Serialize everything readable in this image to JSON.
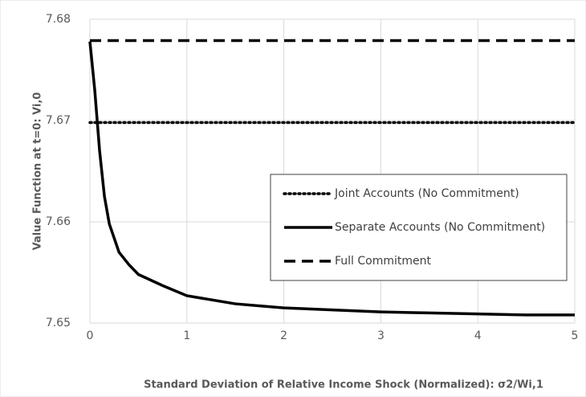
{
  "chart_data": {
    "type": "line",
    "y_label": "Value Function at t=0: Vi,0",
    "x_label": "Standard Deviation of Relative Income Shock (Normalized): σ2/Wi,1",
    "x": [
      0,
      0.05,
      0.1,
      0.15,
      0.2,
      0.3,
      0.4,
      0.5,
      0.75,
      1,
      1.5,
      2,
      2.5,
      3,
      3.5,
      4,
      4.5,
      5
    ],
    "series": [
      {
        "name": "Joint Accounts (No Commitment)",
        "color": "#000000",
        "style": "dotted",
        "values": [
          7.6698,
          7.6698,
          7.6698,
          7.6698,
          7.6698,
          7.6698,
          7.6698,
          7.6698,
          7.6698,
          7.6698,
          7.6698,
          7.6698,
          7.6698,
          7.6698,
          7.6698,
          7.6698,
          7.6698,
          7.6698
        ]
      },
      {
        "name": "Separate Accounts (No Commitment)",
        "color": "#000000",
        "style": "solid",
        "values": [
          7.6778,
          7.673,
          7.667,
          7.6625,
          7.6598,
          7.657,
          7.6558,
          7.6548,
          7.6537,
          7.6527,
          7.6519,
          7.6515,
          7.6513,
          7.6511,
          7.651,
          7.6509,
          7.6508,
          7.6508
        ]
      },
      {
        "name": "Full Commitment",
        "color": "#000000",
        "style": "dashed",
        "values": [
          7.6779,
          7.6779,
          7.6779,
          7.6779,
          7.6779,
          7.6779,
          7.6779,
          7.6779,
          7.6779,
          7.6779,
          7.6779,
          7.6779,
          7.6779,
          7.6779,
          7.6779,
          7.6779,
          7.6779,
          7.6779
        ]
      }
    ],
    "xlim": [
      0,
      5
    ],
    "xticks": [
      0,
      1,
      2,
      3,
      4,
      5
    ],
    "ylim": [
      7.65,
      7.68
    ],
    "yticks": [
      7.65,
      7.66,
      7.67,
      7.68
    ],
    "grid": true,
    "legend": "right"
  }
}
